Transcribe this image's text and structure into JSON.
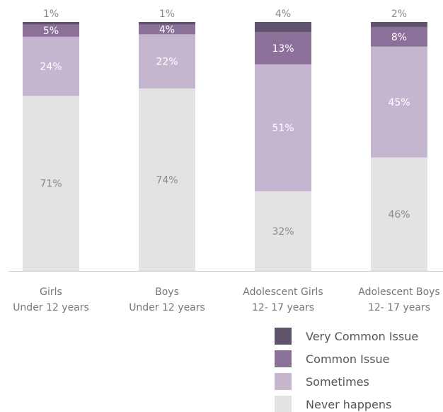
{
  "chart_data": {
    "type": "bar",
    "stacked": true,
    "percent_stacked": true,
    "categories": [
      [
        "Girls",
        "Under 12 years"
      ],
      [
        "Boys",
        "Under 12 years"
      ],
      [
        "Adolescent Girls",
        "12- 17 years"
      ],
      [
        "Adolescent Boys",
        "12- 17 years"
      ]
    ],
    "series": [
      {
        "name": "Never happens",
        "values": [
          71,
          74,
          32,
          46
        ],
        "color": "#e3e3e3"
      },
      {
        "name": "Sometimes",
        "values": [
          24,
          22,
          51,
          45
        ],
        "color": "#c4b6cf"
      },
      {
        "name": "Common Issue",
        "values": [
          5,
          4,
          13,
          8
        ],
        "color": "#8b7199"
      },
      {
        "name": "Very Common Issue",
        "values": [
          1,
          1,
          4,
          2
        ],
        "color": "#5f536e"
      }
    ],
    "value_suffix": "%",
    "ylim": [
      0,
      100
    ],
    "legend_order": [
      "Very Common Issue",
      "Common Issue",
      "Sometimes",
      "Never happens"
    ],
    "legend_position": "bottom-right",
    "grid": false
  }
}
